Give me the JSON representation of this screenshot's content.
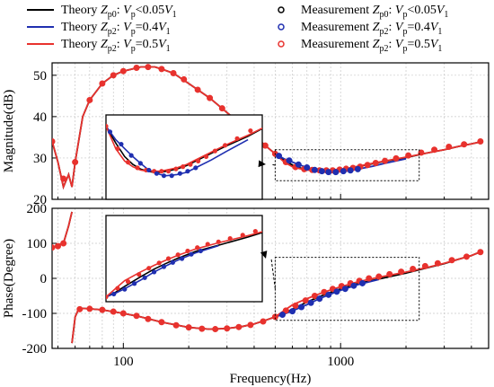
{
  "legend": [
    {
      "kind": "line",
      "pre": "Theory ",
      "zsub": "p0",
      "post": ": ",
      "vsub": "p",
      "cond": "<0.05",
      "v1": "1",
      "color": "#000000"
    },
    {
      "kind": "line",
      "pre": "Theory ",
      "zsub": "p2",
      "post": ": ",
      "vsub": "p",
      "cond": "=0.4",
      "v1": "1",
      "color": "#1f2fb0"
    },
    {
      "kind": "line",
      "pre": "Theory ",
      "zsub": "p2",
      "post": ": ",
      "vsub": "p",
      "cond": "=0.5",
      "v1": "1",
      "color": "#e8322e"
    },
    {
      "kind": "marker",
      "pre": "Measurement ",
      "zsub": "p0",
      "post": ": ",
      "vsub": "p",
      "cond": "<0.05",
      "v1": "1",
      "color": "#000000"
    },
    {
      "kind": "marker",
      "pre": "Measurement ",
      "zsub": "p2",
      "post": ": ",
      "vsub": "p",
      "cond": "=0.4",
      "v1": "1",
      "color": "#1f2fb0"
    },
    {
      "kind": "marker",
      "pre": "Measurement ",
      "zsub": "p2",
      "post": ": ",
      "vsub": "p",
      "cond": "=0.5",
      "v1": "1",
      "color": "#e8322e"
    }
  ],
  "chart_data": [
    {
      "type": "line",
      "ylabel": "Magnitude(dB)",
      "xscale": "log",
      "xlim": [
        47,
        4800
      ],
      "ylim": [
        20,
        53
      ],
      "yticks": [
        20,
        30,
        40,
        50
      ],
      "grid": true,
      "series": [
        {
          "name": "Theory Zp0: Vp<0.05V1",
          "color": "#000000",
          "x": [
            47,
            50,
            53,
            56,
            58,
            60,
            65,
            70,
            80,
            90,
            100,
            120,
            140,
            150,
            170,
            200,
            250,
            300,
            350,
            400,
            450,
            500,
            550,
            600,
            650,
            700,
            750,
            800,
            850,
            900,
            1000,
            1100,
            1200,
            1400,
            1600,
            2000,
            2500,
            3000,
            3500,
            4000,
            4500
          ],
          "y": [
            34,
            29,
            23,
            26,
            23,
            29,
            40,
            44,
            48,
            50,
            51,
            52,
            52,
            51.5,
            50.5,
            48,
            44.5,
            41,
            38,
            35.5,
            33,
            31,
            29.5,
            28.3,
            27.6,
            27.2,
            27,
            26.9,
            26.9,
            27,
            27.2,
            27.5,
            27.9,
            28.6,
            29.2,
            30.1,
            31.2,
            32,
            32.8,
            33.4,
            34
          ]
        },
        {
          "name": "Theory Zp2: Vp=0.4V1",
          "color": "#1f2fb0",
          "x": [
            500,
            550,
            600,
            650,
            700,
            750,
            800,
            850,
            900,
            1000,
            1100,
            1200,
            1400,
            1600,
            2000
          ],
          "y": [
            31,
            29.8,
            29,
            28.3,
            27.7,
            27.2,
            26.9,
            26.7,
            26.6,
            26.7,
            26.9,
            27.3,
            28,
            28.7,
            29.8
          ]
        },
        {
          "name": "Theory Zp2: Vp=0.5V1",
          "color": "#e8322e",
          "x": [
            47,
            50,
            53,
            56,
            58,
            60,
            65,
            70,
            80,
            90,
            100,
            120,
            140,
            150,
            170,
            200,
            250,
            300,
            350,
            400,
            450,
            500,
            550,
            600,
            650,
            700,
            750,
            800,
            850,
            900,
            1000,
            1100,
            1200,
            1400,
            1600,
            2000,
            2500,
            3000,
            3500,
            4000,
            4500
          ],
          "y": [
            34,
            29,
            23,
            26,
            23,
            29,
            40,
            44,
            48,
            50,
            51,
            52,
            52,
            51.5,
            50.5,
            48,
            44.5,
            41,
            38,
            35.5,
            33,
            31,
            29,
            27.9,
            27.4,
            27.1,
            27,
            27,
            27,
            27.1,
            27.3,
            27.6,
            28,
            28.7,
            29.3,
            30.2,
            31.2,
            32,
            32.8,
            33.4,
            34
          ]
        }
      ],
      "markers": [
        {
          "series": "Measurement Zp2: Vp=0.5V1",
          "color": "#e8322e",
          "x": [
            47,
            53,
            60,
            70,
            80,
            90,
            100,
            115,
            130,
            150,
            170,
            190,
            220,
            250,
            285,
            320,
            360,
            400,
            450,
            500,
            560,
            620,
            680,
            740,
            800,
            860,
            920,
            990,
            1060,
            1140,
            1230,
            1330,
            1450,
            1600,
            1800,
            2050,
            2350,
            2700,
            3150,
            3700,
            4400
          ],
          "y": [
            34,
            25,
            29,
            44,
            48,
            50,
            51,
            51.8,
            52,
            51.5,
            50.5,
            49,
            46.5,
            44.5,
            42,
            39.5,
            37,
            35.5,
            33,
            31,
            29,
            27.8,
            27.3,
            27.1,
            27,
            27,
            27,
            27.2,
            27.4,
            27.6,
            27.9,
            28.3,
            28.8,
            29.3,
            29.9,
            30.6,
            31.3,
            32,
            32.7,
            33.3,
            34
          ]
        },
        {
          "series": "Measurement Zp2: Vp=0.4V1",
          "color": "#1f2fb0",
          "x": [
            520,
            580,
            640,
            700,
            760,
            820,
            880,
            950,
            1030,
            1110,
            1200
          ],
          "y": [
            30.5,
            29.4,
            28.4,
            27.7,
            27.1,
            26.8,
            26.6,
            26.6,
            26.8,
            27,
            27.3
          ]
        }
      ],
      "inset_zoom": {
        "x": [
          500,
          2300
        ]
      }
    },
    {
      "type": "line",
      "xlabel": "Frequency(Hz)",
      "ylabel": "Phase(Degree)",
      "xscale": "log",
      "xlim": [
        47,
        4800
      ],
      "ylim": [
        -200,
        200
      ],
      "yticks": [
        -200,
        -100,
        0,
        100,
        200
      ],
      "xticks": [
        100,
        1000
      ],
      "xticklabels": [
        "100",
        "1000"
      ],
      "grid": true,
      "series": [
        {
          "name": "Theory Zp0: Vp<0.05V1",
          "color": "#000000",
          "x": [
            47,
            50,
            53,
            56,
            58
          ],
          "y": [
            88,
            95,
            100,
            150,
            190
          ]
        },
        {
          "name": "Theory Zp0: Vp<0.05V1",
          "color": "#000000",
          "x": [
            58,
            60,
            62,
            65,
            70,
            80,
            90,
            100,
            120,
            150,
            200,
            250,
            300,
            350,
            400,
            450,
            500,
            550,
            600,
            700,
            800,
            900,
            1000,
            1200,
            1500,
            2000,
            2500,
            3000,
            3500,
            4000,
            4500
          ],
          "y": [
            -185,
            -110,
            -90,
            -86,
            -87,
            -90,
            -95,
            -100,
            -110,
            -125,
            -140,
            -145,
            -143,
            -138,
            -130,
            -120,
            -110,
            -100,
            -88,
            -68,
            -52,
            -40,
            -30,
            -15,
            -2,
            15,
            30,
            42,
            55,
            65,
            78
          ]
        },
        {
          "name": "Theory Zp2: Vp=0.4V1",
          "color": "#1f2fb0",
          "x": [
            500,
            550,
            600,
            700,
            800,
            900,
            1000,
            1200,
            1500
          ],
          "y": [
            -110,
            -102,
            -93,
            -75,
            -58,
            -45,
            -34,
            -18,
            -3
          ]
        },
        {
          "name": "Theory Zp2: Vp=0.5V1",
          "color": "#e8322e",
          "x": [
            47,
            50,
            53,
            56,
            58
          ],
          "y": [
            88,
            95,
            100,
            150,
            190
          ]
        },
        {
          "name": "Theory Zp2: Vp=0.5V1",
          "color": "#e8322e",
          "x": [
            58,
            60,
            62,
            65,
            70,
            80,
            90,
            100,
            120,
            150,
            200,
            250,
            300,
            350,
            400,
            450,
            500,
            550,
            600,
            700,
            800,
            900,
            1000,
            1200,
            1500,
            2000,
            2500,
            3000,
            3500,
            4000,
            4500
          ],
          "y": [
            -185,
            -110,
            -90,
            -86,
            -87,
            -90,
            -95,
            -100,
            -110,
            -125,
            -140,
            -145,
            -143,
            -138,
            -130,
            -120,
            -110,
            -92,
            -76,
            -58,
            -44,
            -33,
            -24,
            -10,
            3,
            18,
            31,
            43,
            55,
            65,
            78
          ]
        }
      ],
      "markers": [
        {
          "series": "Measurement Zp2: Vp=0.5V1",
          "color": "#e8322e",
          "x": [
            47,
            50,
            53,
            63,
            70,
            80,
            90,
            100,
            115,
            130,
            150,
            175,
            200,
            230,
            265,
            300,
            340,
            385,
            440,
            500,
            560,
            620,
            690,
            760,
            840,
            920,
            1010,
            1110,
            1220,
            1350,
            1500,
            1680,
            1900,
            2150,
            2450,
            2800,
            3250,
            3800,
            4400
          ],
          "y": [
            88,
            92,
            100,
            -88,
            -87,
            -90,
            -95,
            -100,
            -107,
            -116,
            -125,
            -134,
            -140,
            -144,
            -145,
            -143,
            -139,
            -133,
            -123,
            -110,
            -92,
            -78,
            -63,
            -50,
            -39,
            -30,
            -22,
            -14,
            -7,
            0,
            5,
            12,
            19,
            27,
            35,
            43,
            52,
            62,
            75
          ]
        },
        {
          "series": "Measurement Zp2: Vp=0.4V1",
          "color": "#1f2fb0",
          "x": [
            540,
            600,
            660,
            730,
            800,
            880,
            960,
            1050,
            1150,
            1260
          ],
          "y": [
            -104,
            -94,
            -82,
            -70,
            -58,
            -47,
            -38,
            -30,
            -21,
            -14
          ]
        }
      ],
      "inset_zoom": {
        "x": [
          500,
          2300
        ]
      }
    }
  ]
}
